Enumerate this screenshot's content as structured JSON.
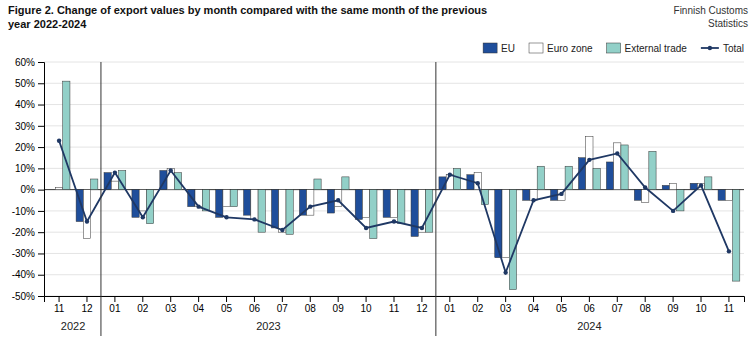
{
  "chart_data": {
    "type": "bar",
    "title": "Figure 2. Change of export values by month compared with the same month of the previous\nyear 2022-2024",
    "subtitle": "Finnish Customs\nStatistics",
    "categories": [
      "11",
      "12",
      "01",
      "02",
      "03",
      "04",
      "05",
      "06",
      "07",
      "08",
      "09",
      "10",
      "11",
      "12",
      "01",
      "02",
      "03",
      "04",
      "05",
      "06",
      "07",
      "08",
      "09",
      "10",
      "11"
    ],
    "category_groups": [
      "2022",
      "2022",
      "2023",
      "2023",
      "2023",
      "2023",
      "2023",
      "2023",
      "2023",
      "2023",
      "2023",
      "2023",
      "2023",
      "2023",
      "2024",
      "2024",
      "2024",
      "2024",
      "2024",
      "2024",
      "2024",
      "2024",
      "2024",
      "2024",
      "2024"
    ],
    "series": [
      {
        "name": "EU",
        "type": "bar",
        "color": "#1F4E9B",
        "values": [
          0,
          -15,
          8,
          -13,
          9,
          -8,
          -13,
          -12,
          -18,
          -12,
          -11,
          -14,
          -13,
          -22,
          6,
          7,
          -32,
          -5,
          -5,
          15,
          13,
          -5,
          2,
          3,
          -5
        ]
      },
      {
        "name": "Euro zone",
        "type": "bar",
        "color": "#FFFFFF",
        "values": [
          1,
          -23,
          4,
          -10,
          10,
          -8,
          -8,
          -14,
          -20,
          -12,
          -8,
          -13,
          -13,
          -20,
          7,
          8,
          -32,
          -5,
          -5,
          25,
          22,
          -6,
          3,
          3,
          -5
        ]
      },
      {
        "name": "External trade",
        "type": "bar",
        "color": "#92D0C8",
        "values": [
          51,
          5,
          9,
          -16,
          8,
          -10,
          -8,
          -20,
          -21,
          5,
          6,
          -23,
          -16,
          -20,
          10,
          -7,
          -47,
          11,
          11,
          10,
          21,
          18,
          -10,
          6,
          -43
        ]
      },
      {
        "name": "Total",
        "type": "line",
        "color": "#1F3864",
        "marker": "circle",
        "line_style": "solid",
        "values": [
          23,
          -15,
          8,
          -13,
          9,
          -8,
          -13,
          -14,
          -19,
          -8,
          -5,
          -18,
          -15,
          -18,
          7,
          3,
          -39,
          -5,
          -2,
          14,
          17,
          1,
          -10,
          2,
          -29
        ]
      }
    ],
    "ylim": [
      -50,
      60
    ],
    "yticks": [
      {
        "value": -50,
        "label": "-50%"
      },
      {
        "value": -40,
        "label": "-40%"
      },
      {
        "value": -30,
        "label": "-30%"
      },
      {
        "value": -20,
        "label": "-20%"
      },
      {
        "value": -10,
        "label": "-10%"
      },
      {
        "value": 0,
        "label": "0%"
      },
      {
        "value": 10,
        "label": "10%"
      },
      {
        "value": 20,
        "label": "20%"
      },
      {
        "value": 30,
        "label": "30%"
      },
      {
        "value": 40,
        "label": "40%"
      },
      {
        "value": 50,
        "label": "50%"
      },
      {
        "value": 60,
        "label": "60%"
      }
    ],
    "grid": true,
    "legend": "upper right"
  }
}
